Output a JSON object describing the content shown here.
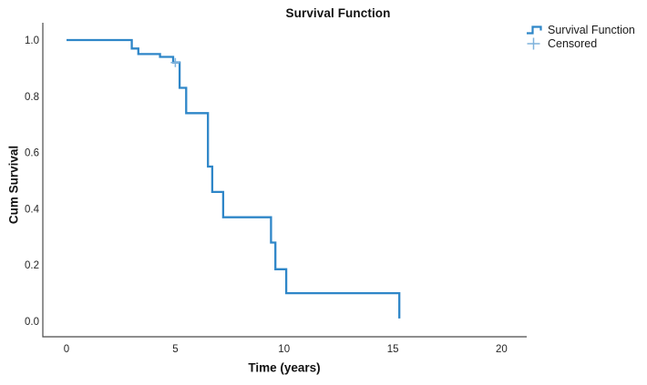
{
  "title": "Survival Function",
  "legend": {
    "position": "top-right",
    "items": [
      {
        "label": "Survival Function",
        "icon": "step-line-icon"
      },
      {
        "label": "Censored",
        "icon": "plus-icon"
      }
    ]
  },
  "axes": {
    "x_label": "Time (years)",
    "y_label": "Cum Survival",
    "x_ticks": [
      "0",
      "5",
      "10",
      "15",
      "20"
    ],
    "y_ticks": [
      "0.0",
      "0.2",
      "0.4",
      "0.6",
      "0.8",
      "1.0"
    ]
  },
  "colors": {
    "line": "#2E86C8",
    "censored": "#7FB2DC",
    "axis": "#4A4A4A",
    "text": "#262626"
  },
  "chart_data": {
    "type": "line",
    "subtype": "kaplan_meier_step",
    "title": "Survival Function",
    "xlabel": "Time (years)",
    "ylabel": "Cum Survival",
    "xticks": [
      0,
      5,
      10,
      15,
      20
    ],
    "yticks": [
      0.0,
      0.2,
      0.4,
      0.6,
      0.8,
      1.0
    ],
    "xlim": [
      0,
      20
    ],
    "ylim": [
      0.0,
      1.0
    ],
    "grid": false,
    "legend_position": "top-right",
    "series": [
      {
        "name": "Survival Function",
        "style": "step_post",
        "points": [
          [
            0.0,
            1.0
          ],
          [
            3.0,
            0.97
          ],
          [
            3.3,
            0.95
          ],
          [
            4.3,
            0.94
          ],
          [
            4.9,
            0.92
          ],
          [
            5.2,
            0.83
          ],
          [
            5.5,
            0.74
          ],
          [
            6.5,
            0.55
          ],
          [
            6.7,
            0.46
          ],
          [
            7.2,
            0.37
          ],
          [
            9.4,
            0.28
          ],
          [
            9.6,
            0.185
          ],
          [
            10.1,
            0.1
          ],
          [
            15.3,
            0.01
          ]
        ]
      }
    ],
    "censored_points": [
      [
        5.0,
        0.92
      ]
    ]
  }
}
